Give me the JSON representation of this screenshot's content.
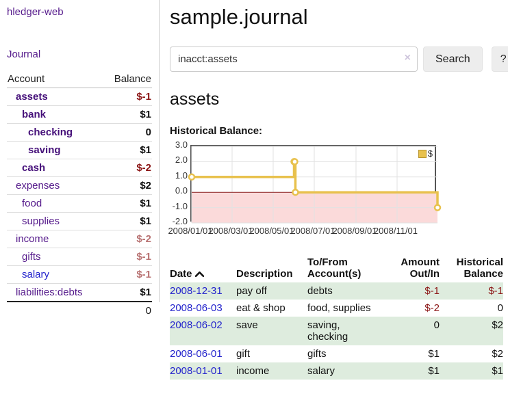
{
  "sidebar": {
    "app_title": "hledger-web",
    "journal_label": "Journal",
    "table": {
      "account_header": "Account",
      "balance_header": "Balance",
      "accounts": [
        {
          "label": "assets",
          "balance": "$-1"
        },
        {
          "label": "bank",
          "balance": "$1"
        },
        {
          "label": "checking",
          "balance": "0"
        },
        {
          "label": "saving",
          "balance": "$1"
        },
        {
          "label": "cash",
          "balance": "$-2"
        },
        {
          "label": "expenses",
          "balance": "$2"
        },
        {
          "label": "food",
          "balance": "$1"
        },
        {
          "label": "supplies",
          "balance": "$1"
        },
        {
          "label": "income",
          "balance": "$-2"
        },
        {
          "label": "gifts",
          "balance": "$-1"
        },
        {
          "label": "salary",
          "balance": "$-1"
        },
        {
          "label": "liabilities:debts",
          "balance": "$1"
        }
      ],
      "total": "0"
    }
  },
  "main": {
    "title": "sample.journal",
    "search": {
      "value": "inacct:assets",
      "clear_label": "×",
      "search_button": "Search",
      "help_button": "?"
    },
    "account_heading": "assets",
    "chart_label": "Historical Balance:",
    "table": {
      "headers": {
        "date": "Date",
        "description": "Description",
        "accounts": "To/From Account(s)",
        "amount": "Amount Out/In",
        "balance": "Historical Balance"
      },
      "rows": [
        {
          "date": "2008-12-31",
          "description": "pay off",
          "accounts": "debts",
          "amount": "$-1",
          "balance": "$-1"
        },
        {
          "date": "2008-06-03",
          "description": "eat & shop",
          "accounts": "food, supplies",
          "amount": "$-2",
          "balance": "0"
        },
        {
          "date": "2008-06-02",
          "description": "save",
          "accounts": "saving, checking",
          "amount": "0",
          "balance": "$2"
        },
        {
          "date": "2008-06-01",
          "description": "gift",
          "accounts": "gifts",
          "amount": "$1",
          "balance": "$2"
        },
        {
          "date": "2008-01-01",
          "description": "income",
          "accounts": "salary",
          "amount": "$1",
          "balance": "$1"
        }
      ]
    }
  },
  "chart_data": {
    "type": "line",
    "step": true,
    "title": "Historical Balance",
    "legend": "$",
    "legend_position": "top-right",
    "grid": true,
    "y_ticks": [
      3,
      2,
      1,
      0,
      -1,
      -2
    ],
    "y_domain": [
      -2,
      3
    ],
    "x_tick_labels": [
      "2008/01/01",
      "2008/03/01",
      "2008/05/01",
      "2008/07/01",
      "2008/09/01",
      "2008/11/01"
    ],
    "x_tick_days": [
      0,
      60,
      121,
      182,
      244,
      305
    ],
    "x_domain_days": [
      0,
      365
    ],
    "series": [
      {
        "name": "$",
        "points": [
          [
            "2008-01-01",
            1
          ],
          [
            "2008-06-01",
            2
          ],
          [
            "2008-06-02",
            2
          ],
          [
            "2008-06-03",
            0
          ],
          [
            "2008-12-31",
            -1
          ]
        ],
        "points_days": [
          [
            0,
            1
          ],
          [
            152,
            2
          ],
          [
            153,
            2
          ],
          [
            154,
            0
          ],
          [
            365,
            -1
          ]
        ]
      }
    ],
    "colors": {
      "line": "#e8c14d",
      "marker_fill": "#ffffff",
      "negative_fill": "#fbdada",
      "zero_line": "#8b1a1a",
      "grid": "#e2e2e2",
      "plot_border": "#555555"
    }
  },
  "colors": {
    "link_purple": "#551a8b",
    "link_blue": "#2222cc",
    "negative_strong": "#8b1515",
    "negative_light": "#b87272",
    "row_stripe_green": "#deecde"
  }
}
